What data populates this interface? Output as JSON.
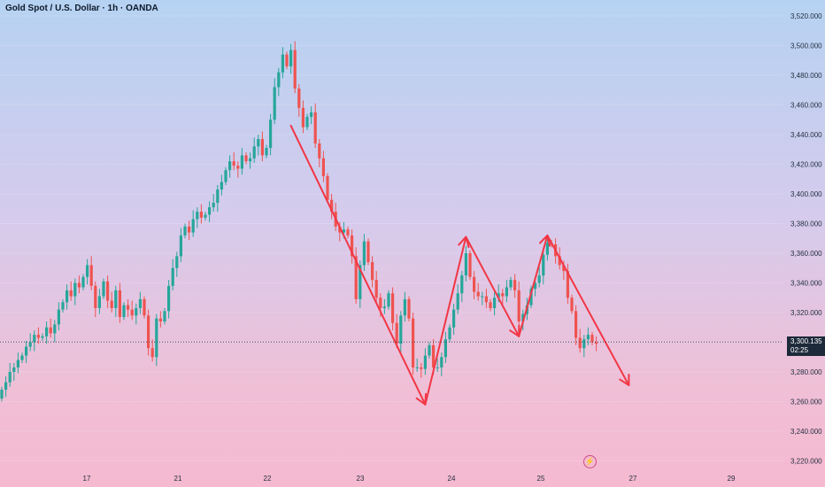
{
  "header": {
    "title": "Gold Spot / U.S. Dollar · 1h · OANDA"
  },
  "current_price": {
    "value": "3,300.135",
    "countdown": "02:25",
    "color": "#1d2a3a"
  },
  "icons": {
    "flash": "lightning-icon"
  },
  "colors": {
    "up": "#26a69a",
    "down": "#ef5350",
    "annotation": "#f23645"
  },
  "chart_data": {
    "type": "candlestick",
    "title": "Gold Spot / U.S. Dollar · 1h · OANDA",
    "ylim": [
      3210,
      3530
    ],
    "y_ticks": [
      "3,220.000",
      "3,240.000",
      "3,260.000",
      "3,280.000",
      "3,300.000",
      "3,320.000",
      "3,340.000",
      "3,360.000",
      "3,380.000",
      "3,400.000",
      "3,420.000",
      "3,440.000",
      "3,460.000",
      "3,480.000",
      "3,500.000",
      "3,520.000"
    ],
    "x_ticks": [
      "17",
      "21",
      "22",
      "23",
      "24",
      "25",
      "27",
      "29"
    ],
    "close": [
      3268,
      3273,
      3280,
      3283,
      3288,
      3291,
      3297,
      3300,
      3305,
      3303,
      3304,
      3310,
      3306,
      3312,
      3322,
      3327,
      3335,
      3331,
      3340,
      3337,
      3344,
      3352,
      3338,
      3323,
      3331,
      3341,
      3328,
      3323,
      3335,
      3317,
      3325,
      3322,
      3318,
      3323,
      3329,
      3318,
      3296,
      3290,
      3316,
      3314,
      3321,
      3338,
      3350,
      3358,
      3372,
      3378,
      3374,
      3383,
      3388,
      3384,
      3386,
      3391,
      3394,
      3403,
      3408,
      3416,
      3422,
      3419,
      3417,
      3426,
      3422,
      3424,
      3432,
      3437,
      3426,
      3431,
      3450,
      3472,
      3482,
      3494,
      3486,
      3497,
      3471,
      3458,
      3445,
      3452,
      3455,
      3434,
      3424,
      3412,
      3396,
      3388,
      3378,
      3374,
      3376,
      3372,
      3358,
      3329,
      3352,
      3368,
      3354,
      3342,
      3330,
      3323,
      3324,
      3333,
      3313,
      3299,
      3318,
      3329,
      3316,
      3283,
      3283,
      3282,
      3291,
      3298,
      3283,
      3283,
      3290,
      3302,
      3310,
      3322,
      3333,
      3345,
      3360,
      3344,
      3334,
      3331,
      3331,
      3327,
      3323,
      3330,
      3333,
      3331,
      3337,
      3342,
      3335,
      3314,
      3319,
      3325,
      3336,
      3340,
      3345,
      3359,
      3367,
      3366,
      3358,
      3352,
      3348,
      3330,
      3321,
      3303,
      3296,
      3302,
      3305,
      3300,
      3299
    ],
    "annotations": [
      {
        "type": "arrow",
        "from": {
          "bar": 71,
          "price": 3446
        },
        "to": {
          "bar": 104,
          "price": 3258
        }
      },
      {
        "type": "arrow",
        "from": {
          "bar": 104,
          "price": 3258
        },
        "to": {
          "bar": 114,
          "price": 3371
        }
      },
      {
        "type": "arrow",
        "from": {
          "bar": 114,
          "price": 3371
        },
        "to": {
          "bar": 127,
          "price": 3304
        }
      },
      {
        "type": "arrow",
        "from": {
          "bar": 127,
          "price": 3304
        },
        "to": {
          "bar": 134,
          "price": 3372
        }
      },
      {
        "type": "arrow",
        "from": {
          "bar": 134,
          "price": 3372
        },
        "to": {
          "bar": 154,
          "price": 3271
        }
      }
    ]
  }
}
